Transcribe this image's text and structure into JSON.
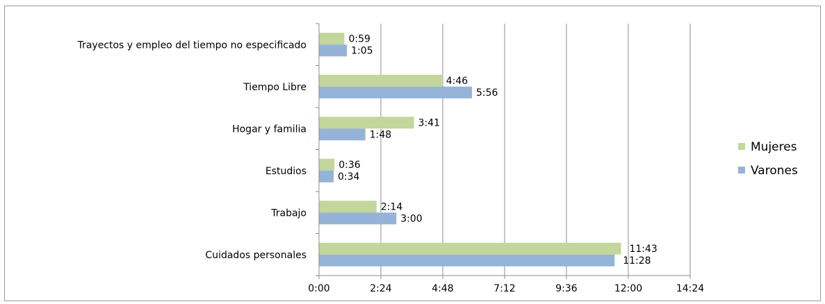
{
  "chart_data": {
    "type": "bar",
    "orientation": "horizontal",
    "categories": [
      "Cuidados personales",
      "Trabajo",
      "Estudios",
      "Hogar y familia",
      "Tiempo Libre",
      "Trayectos y empleo del tiempo no especificado"
    ],
    "series": [
      {
        "name": "Mujeres",
        "color": "#c3d69b",
        "values": [
          "11:43",
          "2:14",
          "0:36",
          "3:41",
          "4:46",
          "0:59"
        ]
      },
      {
        "name": "Varones",
        "color": "#95b3d7",
        "values": [
          "11:28",
          "3:00",
          "0:34",
          "1:48",
          "5:56",
          "1:05"
        ]
      }
    ],
    "x_ticks": [
      "0:00",
      "2:24",
      "4:48",
      "7:12",
      "9:36",
      "12:00",
      "14:24"
    ],
    "xlim": [
      "0:00",
      "14:24"
    ],
    "grid": "vertical",
    "legend": "right"
  }
}
